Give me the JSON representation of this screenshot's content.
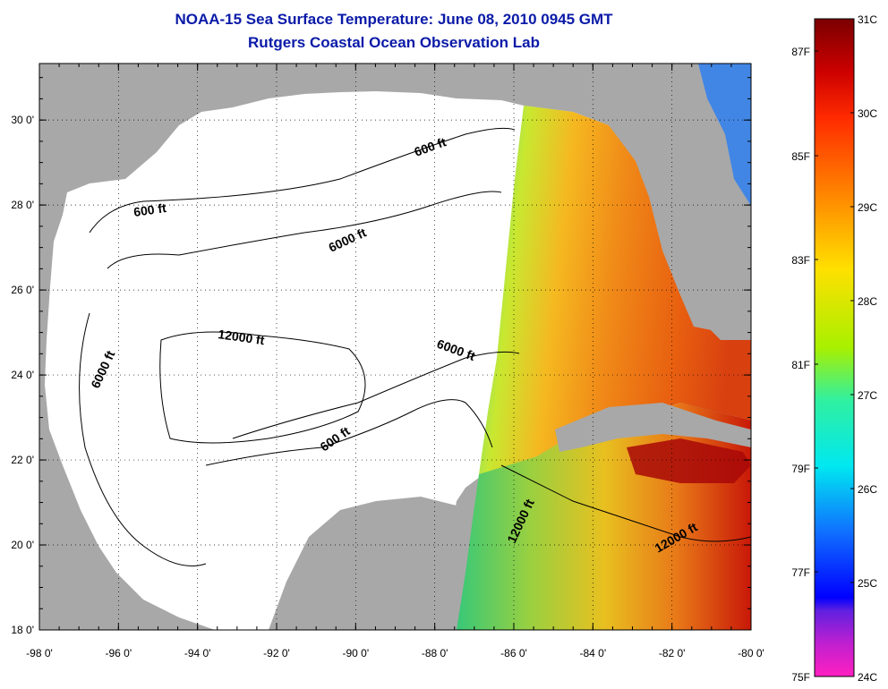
{
  "title": "NOAA-15 Sea Surface Temperature:  June 08, 2010 0945 GMT",
  "subtitle": "Rutgers Coastal Ocean Observation Lab",
  "x_ticks": [
    "-98 0'",
    "-96 0'",
    "-94 0'",
    "-92 0'",
    "-90 0'",
    "-88 0'",
    "-86 0'",
    "-84 0'",
    "-82 0'",
    "-80 0'"
  ],
  "y_ticks": [
    "18 0'",
    "20 0'",
    "22 0'",
    "24 0'",
    "26 0'",
    "28 0'",
    "30 0'"
  ],
  "contour_labels": [
    "600 ft",
    "600 ft",
    "6000 ft",
    "6000 ft",
    "6000 ft",
    "12000 ft",
    "600 ft",
    "12000 ft",
    "12000 ft"
  ],
  "colorbar": {
    "celsius": [
      "31C",
      "30C",
      "29C",
      "28C",
      "27C",
      "26C",
      "25C",
      "24C"
    ],
    "fahrenheit": [
      "87F",
      "85F",
      "83F",
      "81F",
      "79F",
      "77F",
      "75F"
    ]
  },
  "colors": {
    "land": "#a8a8a8",
    "title": "#0a1aa8",
    "water": "#ffffff"
  }
}
